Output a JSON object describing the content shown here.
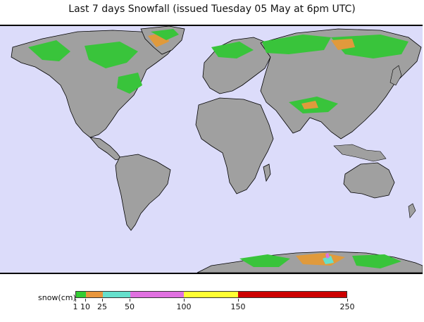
{
  "title": "Last 7 days Snowfall (issued Tuesday 05 May at 6pm UTC)",
  "colors": {
    "ocean": "#dcdcfa",
    "land": "#a0a0a0",
    "land_dark": "#7d7d7d",
    "snow_light": "#39c43b",
    "snow_orange": "#e09a3c"
  },
  "legend": {
    "label": "snow(cm)",
    "segments": [
      {
        "from": 1,
        "to": 10,
        "color": "#33cc33"
      },
      {
        "from": 10,
        "to": 25,
        "color": "#e8963c"
      },
      {
        "from": 25,
        "to": 50,
        "color": "#66e0cc"
      },
      {
        "from": 50,
        "to": 100,
        "color": "#e070e0"
      },
      {
        "from": 100,
        "to": 150,
        "color": "#ffff33"
      },
      {
        "from": 150,
        "to": 250,
        "color": "#cc0000"
      }
    ],
    "ticks": [
      "1",
      "10",
      "25",
      "50",
      "100",
      "150",
      "250"
    ]
  }
}
